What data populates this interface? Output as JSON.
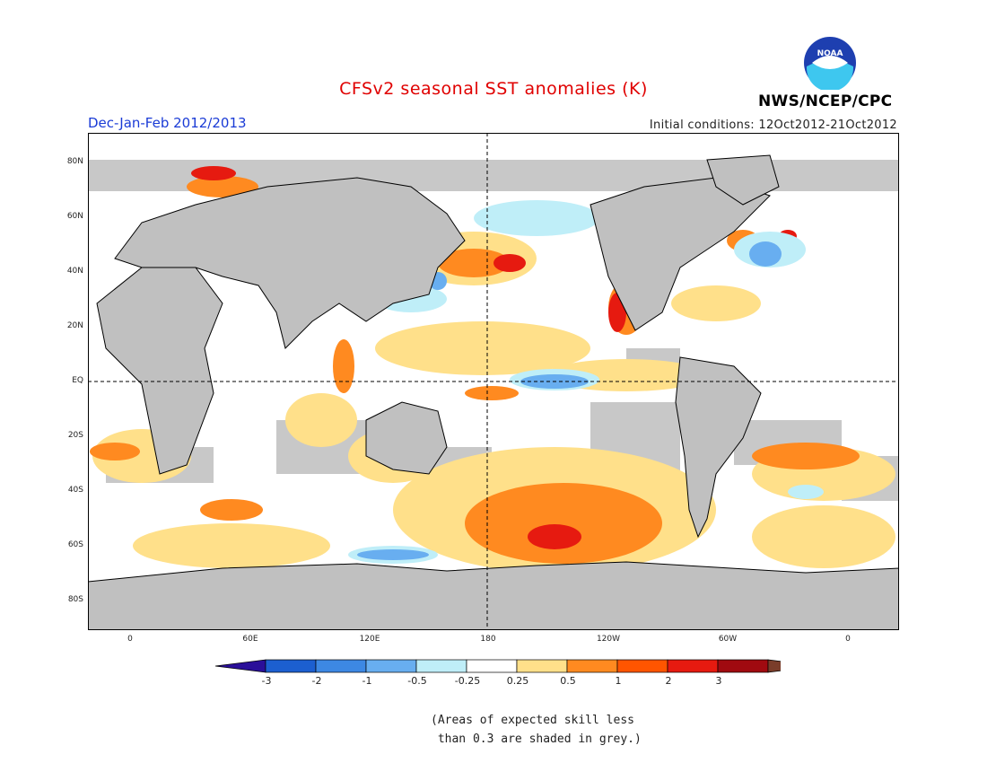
{
  "title": "CFSv2 seasonal SST anomalies (K)",
  "period": "Dec-Jan-Feb 2012/2013",
  "initial_conditions": "Initial conditions: 12Oct2012-21Oct2012",
  "agency": "NWS/NCEP/CPC",
  "logo_text": "NOAA",
  "y_axis": {
    "labels": [
      "80N",
      "60N",
      "40N",
      "20N",
      "EQ",
      "20S",
      "40S",
      "60S",
      "80S"
    ]
  },
  "x_axis": {
    "labels": [
      "0",
      "60E",
      "120E",
      "180",
      "120W",
      "60W",
      "0"
    ]
  },
  "colorbar": {
    "labels": [
      "-3",
      "-2",
      "-1",
      "-0.5",
      "-0.25",
      "0.25",
      "0.5",
      "1",
      "2",
      "3"
    ],
    "colors": [
      "#2a0f99",
      "#1c5fd0",
      "#3d88e3",
      "#68aef0",
      "#bfeef8",
      "#ffffff",
      "#ffe08a",
      "#ff8a20",
      "#ff5500",
      "#e61a10",
      "#a00a10",
      "#7a3d2a"
    ]
  },
  "note_lines": [
    "(Areas of expected skill less",
    " than 0.3 are shaded in grey.)"
  ],
  "colors": {
    "land": "#c0c0c0",
    "grey_skill": "#c8c8c8",
    "title": "#e00000",
    "period": "#1a3bd6"
  }
}
